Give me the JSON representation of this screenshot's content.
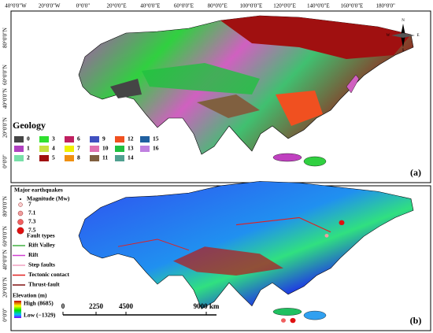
{
  "axes": {
    "longitude_labels": [
      "40°0'0\"W",
      "20°0'0\"W",
      "0°0'0\"",
      "20°0'0\"E",
      "40°0'0\"E",
      "60°0'0\"E",
      "80°0'0\"E",
      "100°0'0\"E",
      "120°0'0\"E",
      "140°0'0\"E",
      "160°0'0\"E",
      "180°0'0\""
    ],
    "latitude_labels": [
      "80°0'0\"N",
      "60°0'0\"N",
      "40°0'0\"N",
      "20°0'0\"N",
      "0°0'0\""
    ]
  },
  "compass": [
    "N",
    "E",
    "S",
    "W"
  ],
  "panel_a": {
    "label": "(a)",
    "legend_title": "Geology",
    "units": [
      {
        "label": "0",
        "color": "#454545"
      },
      {
        "label": "1",
        "color": "#b040c0"
      },
      {
        "label": "2",
        "color": "#78e0a8"
      },
      {
        "label": "3",
        "color": "#30e030"
      },
      {
        "label": "4",
        "color": "#c8e040"
      },
      {
        "label": "5",
        "color": "#a01010"
      },
      {
        "label": "6",
        "color": "#c02060"
      },
      {
        "label": "7",
        "color": "#f0f000"
      },
      {
        "label": "8",
        "color": "#f09010"
      },
      {
        "label": "9",
        "color": "#4050c0"
      },
      {
        "label": "10",
        "color": "#e070b0"
      },
      {
        "label": "11",
        "color": "#806040"
      },
      {
        "label": "12",
        "color": "#f05020"
      },
      {
        "label": "13",
        "color": "#20c040"
      },
      {
        "label": "14",
        "color": "#50a090"
      },
      {
        "label": "15",
        "color": "#2060a0"
      },
      {
        "label": "16",
        "color": "#c080e0"
      }
    ]
  },
  "panel_b": {
    "label": "(b)",
    "earthquakes_title": "Major earthquakes",
    "magnitude_title": "Magnitude (Mw)",
    "magnitudes": [
      "7",
      "7.1",
      "7.3",
      "7.5"
    ],
    "fault_title": "Fault types",
    "faults": [
      {
        "label": "Rift Valley",
        "color": "#40b040"
      },
      {
        "label": "Rift",
        "color": "#d040d0"
      },
      {
        "label": "Step faults",
        "color": "#f0a0c0"
      },
      {
        "label": "Tectonic contact",
        "color": "#e02020"
      },
      {
        "label": "Thrust-fault",
        "color": "#801010"
      }
    ],
    "elevation_title": "Elevation (m)",
    "elevation_high": "High (8685)",
    "elevation_low": "Low (−1329)",
    "scale_bar": [
      "0",
      "2250",
      "4500",
      "9000 km"
    ]
  }
}
